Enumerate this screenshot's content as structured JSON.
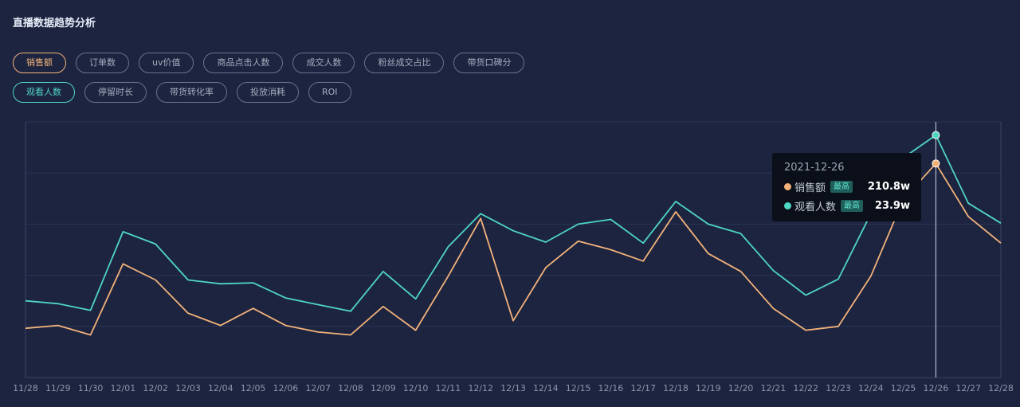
{
  "header": {
    "title": "直播数据趋势分析"
  },
  "metrics_row1": [
    {
      "label": "销售额",
      "active": true
    },
    {
      "label": "订单数",
      "active": false
    },
    {
      "label": "uv价值",
      "active": false
    },
    {
      "label": "商品点击人数",
      "active": false
    },
    {
      "label": "成交人数",
      "active": false
    },
    {
      "label": "粉丝成交占比",
      "active": false
    },
    {
      "label": "带货口碑分",
      "active": false
    }
  ],
  "metrics_row2": [
    {
      "label": "观看人数",
      "active": true
    },
    {
      "label": "停留时长",
      "active": false
    },
    {
      "label": "带货转化率",
      "active": false
    },
    {
      "label": "投放消耗",
      "active": false
    },
    {
      "label": "ROI",
      "active": false
    }
  ],
  "colors": {
    "sales": "#f3b27a",
    "viewers": "#4fd6c2",
    "background": "#1c2440",
    "grid": "#2a3556"
  },
  "tooltip": {
    "date": "2021-12-26",
    "rows": [
      {
        "name": "销售额",
        "badge": "最高",
        "value": "210.8w"
      },
      {
        "name": "观看人数",
        "badge": "最高",
        "value": "23.9w"
      }
    ]
  },
  "chart_data": {
    "type": "line",
    "x": [
      "11/28",
      "11/29",
      "11/30",
      "12/01",
      "12/02",
      "12/03",
      "12/04",
      "12/05",
      "12/06",
      "12/07",
      "12/08",
      "12/09",
      "12/10",
      "12/11",
      "12/12",
      "12/13",
      "12/14",
      "12/15",
      "12/16",
      "12/17",
      "12/18",
      "12/19",
      "12/20",
      "12/21",
      "12/22",
      "12/23",
      "12/24",
      "12/25",
      "12/26",
      "12/27",
      "12/28"
    ],
    "series": [
      {
        "name": "销售额",
        "values": [
          0.52,
          0.55,
          0.45,
          1.2,
          1.03,
          0.68,
          0.55,
          0.73,
          0.55,
          0.48,
          0.45,
          0.75,
          0.5,
          1.07,
          1.68,
          0.6,
          1.16,
          1.44,
          1.35,
          1.23,
          1.75,
          1.31,
          1.12,
          0.73,
          0.5,
          0.54,
          1.07,
          1.88,
          2.26,
          1.7,
          1.42
        ]
      },
      {
        "name": "观看人数",
        "values": [
          0.81,
          0.78,
          0.71,
          1.54,
          1.41,
          1.03,
          0.99,
          1.0,
          0.84,
          0.77,
          0.7,
          1.12,
          0.83,
          1.38,
          1.73,
          1.55,
          1.43,
          1.62,
          1.67,
          1.42,
          1.86,
          1.62,
          1.52,
          1.13,
          0.87,
          1.04,
          1.73,
          2.32,
          2.56,
          1.84,
          1.63
        ]
      }
    ],
    "xlabel": "",
    "ylabel": "",
    "ylim": [
      0,
      2.7
    ],
    "grid": true,
    "legend": "none",
    "highlight_index": 28
  }
}
